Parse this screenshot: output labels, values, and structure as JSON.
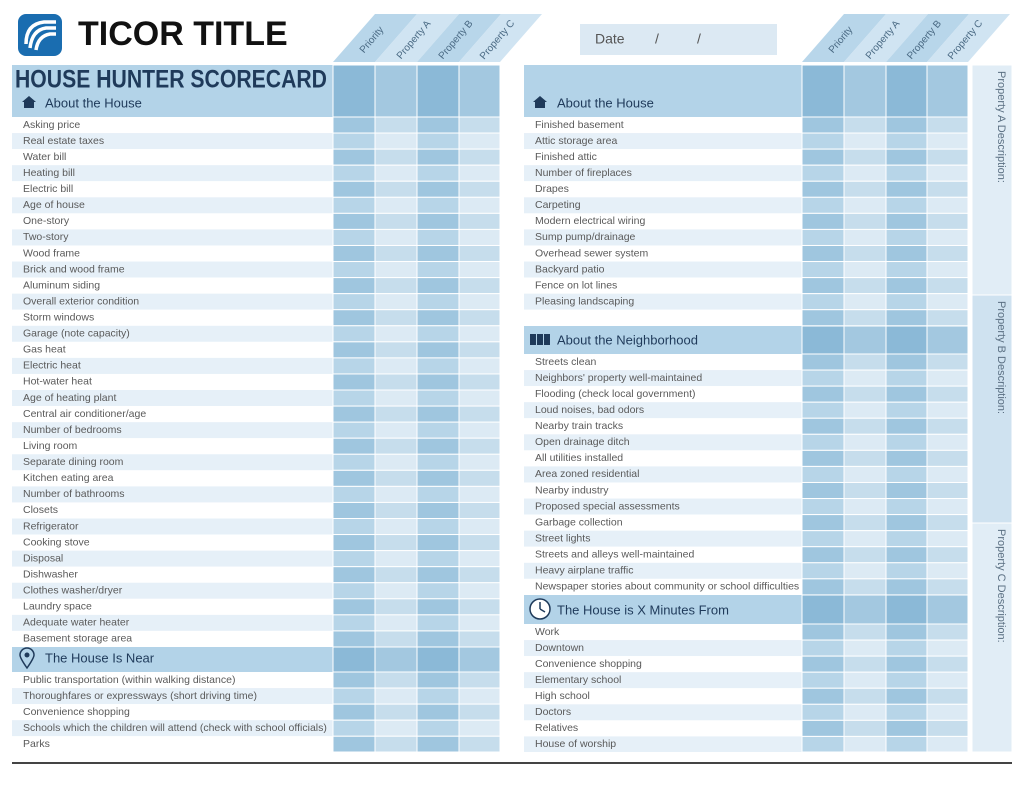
{
  "header": {
    "brand": "TICOR TITLE",
    "date_label": "Date",
    "date_separators": [
      "/",
      "/"
    ]
  },
  "title": "HOUSE HUNTER SCORECARD",
  "columns": [
    "Priority",
    "Property A",
    "Property B",
    "Property C"
  ],
  "left_sections": [
    {
      "title": "About the House",
      "rows": [
        "Asking price",
        "Real estate taxes",
        "Water bill",
        "Heating bill",
        "Electric bill",
        "Age of house",
        "One-story",
        "Two-story",
        "Wood frame",
        "Brick and wood frame",
        "Aluminum siding",
        "Overall exterior condition",
        "Storm windows",
        "Garage (note capacity)",
        "Gas heat",
        "Electric heat",
        "Hot-water heat",
        "Age of heating plant",
        "Central air conditioner/age",
        "Number of bedrooms",
        "Living room",
        "Separate dining room",
        "Kitchen eating area",
        "Number of bathrooms",
        "Closets",
        "Refrigerator",
        "Cooking stove",
        "Disposal",
        "Dishwasher",
        "Clothes washer/dryer",
        "Laundry space",
        "Adequate water heater",
        "Basement storage area"
      ]
    },
    {
      "title": "The House Is Near",
      "rows": [
        "Public transportation (within walking distance)",
        "Thoroughfares or expressways (short driving time)",
        "Convenience shopping",
        "Schools which the children will attend (check with school officials)",
        "Parks"
      ]
    }
  ],
  "right_sections": [
    {
      "title": "About the House",
      "rows": [
        "Finished basement",
        "Attic storage area",
        "Finished attic",
        "Number of fireplaces",
        "Drapes",
        "Carpeting",
        "Modern electrical wiring",
        "Sump pump/drainage",
        "Overhead sewer system",
        "Backyard patio",
        "Fence on lot lines",
        "Pleasing landscaping"
      ]
    },
    {
      "title": "About the Neighborhood",
      "rows": [
        "Streets clean",
        "Neighbors' property well-maintained",
        "Flooding (check local government)",
        "Loud noises, bad odors",
        "Nearby train tracks",
        "Open drainage ditch",
        "All utilities installed",
        "Area zoned residential",
        "Nearby industry",
        "Proposed special assessments",
        "Garbage collection",
        "Street lights",
        "Streets and alleys well-maintained",
        "Heavy airplane traffic",
        "Newspaper stories about community or school difficulties"
      ]
    },
    {
      "title": "The House is X Minutes From",
      "rows": [
        "Work",
        "Downtown",
        "Convenience shopping",
        "Elementary school",
        "High school",
        "Doctors",
        "Relatives",
        "House of worship"
      ]
    }
  ],
  "descriptions": [
    "Property A Description:",
    "Property B Description:",
    "Property C Description:"
  ]
}
